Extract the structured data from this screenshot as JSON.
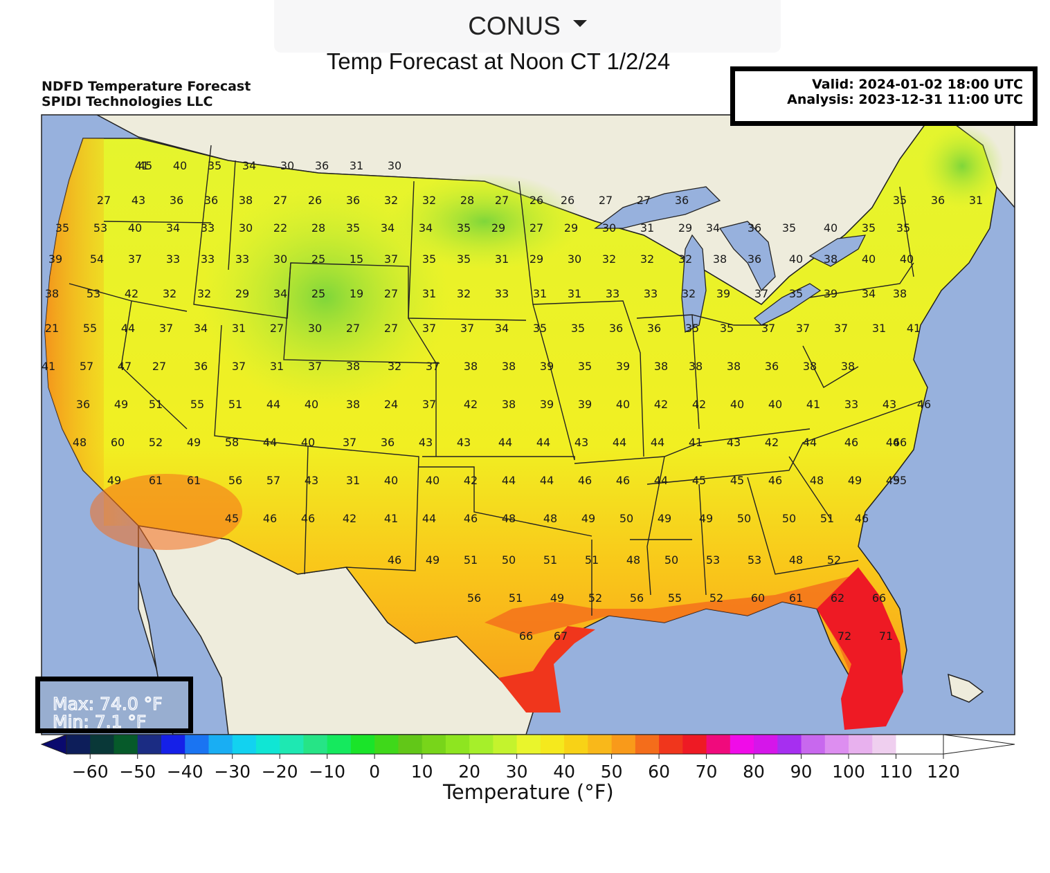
{
  "header": {
    "region_selector": "CONUS",
    "title": "Temp Forecast at Noon CT 1/2/24"
  },
  "map": {
    "product_title": "NDFD Temperature Forecast",
    "producer": "SPIDI Technologies LLC",
    "valid": "Valid: 2024-01-02 18:00 UTC",
    "analysis": "Analysis: 2023-12-31 11:00 UTC",
    "max": "Max: 74.0 °F",
    "min": "Min: 7.1 °F",
    "colors": {
      "ocean": "#97b1dd",
      "land_outside": "#eeecdc",
      "cold_green": "#9be33f",
      "yellow": "#e9f52c",
      "orange": "#f9a21a",
      "red": "#f3281f"
    },
    "station_values": [
      "41",
      "45",
      "40",
      "35",
      "34",
      "30",
      "36",
      "31",
      "30",
      "27",
      "43",
      "36",
      "36",
      "38",
      "27",
      "26",
      "36",
      "32",
      "32",
      "28",
      "27",
      "26",
      "26",
      "27",
      "27",
      "36",
      "35",
      "36",
      "31",
      "35",
      "53",
      "40",
      "34",
      "33",
      "30",
      "22",
      "28",
      "35",
      "34",
      "34",
      "35",
      "29",
      "27",
      "29",
      "30",
      "31",
      "29",
      "34",
      "36",
      "35",
      "40",
      "35",
      "35",
      "39",
      "54",
      "37",
      "33",
      "33",
      "33",
      "30",
      "25",
      "15",
      "37",
      "35",
      "35",
      "31",
      "29",
      "30",
      "32",
      "32",
      "32",
      "38",
      "36",
      "40",
      "38",
      "40",
      "40",
      "38",
      "53",
      "42",
      "32",
      "32",
      "29",
      "34",
      "25",
      "19",
      "27",
      "31",
      "32",
      "33",
      "31",
      "31",
      "33",
      "33",
      "32",
      "39",
      "37",
      "35",
      "39",
      "34",
      "38",
      "21",
      "55",
      "44",
      "37",
      "34",
      "31",
      "27",
      "30",
      "27",
      "27",
      "37",
      "37",
      "34",
      "35",
      "35",
      "36",
      "36",
      "35",
      "35",
      "37",
      "37",
      "37",
      "31",
      "41",
      "41",
      "57",
      "47",
      "27",
      "36",
      "37",
      "31",
      "37",
      "38",
      "32",
      "37",
      "38",
      "38",
      "39",
      "35",
      "39",
      "38",
      "38",
      "38",
      "36",
      "38",
      "38",
      "36",
      "49",
      "51",
      "55",
      "51",
      "44",
      "40",
      "38",
      "24",
      "37",
      "42",
      "38",
      "39",
      "39",
      "40",
      "42",
      "42",
      "40",
      "40",
      "41",
      "33",
      "43",
      "46",
      "48",
      "60",
      "52",
      "49",
      "58",
      "44",
      "40",
      "37",
      "36",
      "43",
      "43",
      "44",
      "44",
      "43",
      "44",
      "44",
      "41",
      "43",
      "42",
      "44",
      "46",
      "46",
      "46",
      "49",
      "61",
      "61",
      "56",
      "57",
      "43",
      "31",
      "40",
      "40",
      "42",
      "44",
      "44",
      "46",
      "46",
      "44",
      "45",
      "45",
      "46",
      "48",
      "49",
      "49",
      "55",
      "45",
      "46",
      "46",
      "42",
      "41",
      "44",
      "46",
      "48",
      "48",
      "49",
      "50",
      "49",
      "49",
      "50",
      "50",
      "51",
      "46",
      "46",
      "49",
      "51",
      "50",
      "51",
      "51",
      "48",
      "50",
      "53",
      "53",
      "48",
      "52",
      "56",
      "51",
      "49",
      "52",
      "56",
      "55",
      "52",
      "60",
      "61",
      "62",
      "66",
      "66",
      "67",
      "72",
      "71"
    ]
  },
  "colorbar": {
    "label": "Temperature (°F)",
    "ticks": [
      "−60",
      "−50",
      "−40",
      "−30",
      "−20",
      "−10",
      "0",
      "10",
      "20",
      "30",
      "40",
      "50",
      "60",
      "70",
      "80",
      "90",
      "100",
      "110",
      "120"
    ],
    "min": -65,
    "max": 120,
    "step": 5,
    "colors": [
      "#0a0a6e",
      "#0d1e5a",
      "#093838",
      "#065a2a",
      "#1b2c83",
      "#1520e8",
      "#1a74f2",
      "#19aef3",
      "#12d2f0",
      "#10e6d4",
      "#1ee8b2",
      "#26e486",
      "#15e95e",
      "#1ae429",
      "#3fd81a",
      "#62c718",
      "#78d51a",
      "#8ee520",
      "#a6ef2a",
      "#c4f32d",
      "#e9f52c",
      "#f5e91d",
      "#f8d216",
      "#f9b81a",
      "#f99a1a",
      "#f46d1b",
      "#f0361c",
      "#ee1a24",
      "#f00a7c",
      "#f00ce8",
      "#d516ea",
      "#a62ff0",
      "#c868ee",
      "#dd8ef0",
      "#e8b1ee",
      "#efcfef",
      "#ffffff"
    ]
  }
}
